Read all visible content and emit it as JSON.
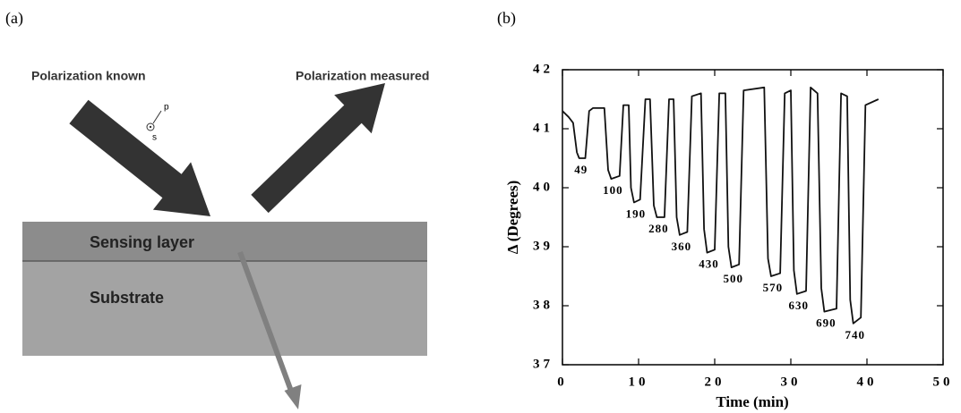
{
  "panel_a": {
    "label": "(a)",
    "incident_label": "Polarization known",
    "reflected_label": "Polarization measured",
    "p_label": "p",
    "s_label": "s",
    "layers": [
      "Sensing layer",
      "Substrate"
    ]
  },
  "panel_b": {
    "label": "(b)",
    "chart_data": {
      "type": "line",
      "xlabel": "Time (min)",
      "ylabel": "Δ (Degrees)",
      "xlim": [
        0,
        50
      ],
      "ylim": [
        37,
        42
      ],
      "xticks": [
        0,
        10,
        20,
        30,
        40,
        50
      ],
      "yticks": [
        37,
        38,
        39,
        40,
        41,
        42
      ],
      "color": "#111111",
      "x": [
        0,
        0.8,
        1.4,
        1.9,
        2.2,
        3.0,
        3.5,
        4.0,
        5.5,
        6.0,
        6.4,
        7.5,
        8.0,
        8.7,
        9.0,
        9.4,
        10.2,
        10.9,
        11.5,
        12.0,
        12.4,
        13.4,
        14.0,
        14.6,
        15.0,
        15.4,
        16.4,
        17.0,
        18.2,
        18.6,
        19.0,
        20.0,
        20.6,
        21.4,
        21.8,
        22.2,
        23.2,
        23.8,
        26.5,
        27.0,
        27.4,
        28.6,
        29.2,
        30.0,
        30.4,
        30.8,
        32.0,
        32.6,
        33.5,
        34.0,
        34.4,
        36.0,
        36.6,
        37.4,
        37.8,
        38.2,
        39.2,
        39.8,
        41.5
      ],
      "values": [
        41.3,
        41.2,
        41.1,
        40.6,
        40.5,
        40.5,
        41.3,
        41.35,
        41.35,
        40.3,
        40.15,
        40.2,
        41.4,
        41.4,
        40.0,
        39.75,
        39.8,
        41.5,
        41.5,
        39.7,
        39.5,
        39.5,
        41.5,
        41.5,
        39.5,
        39.2,
        39.25,
        41.55,
        41.6,
        39.3,
        38.9,
        38.95,
        41.6,
        41.6,
        39.0,
        38.65,
        38.7,
        41.65,
        41.7,
        38.8,
        38.5,
        38.55,
        41.6,
        41.65,
        38.6,
        38.2,
        38.25,
        41.7,
        41.6,
        38.3,
        37.9,
        37.95,
        41.6,
        41.55,
        38.1,
        37.7,
        37.8,
        41.4,
        41.5
      ],
      "annotations": [
        "49",
        "100",
        "190",
        "280",
        "360",
        "430",
        "500",
        "570",
        "630",
        "690",
        "740"
      ]
    }
  }
}
